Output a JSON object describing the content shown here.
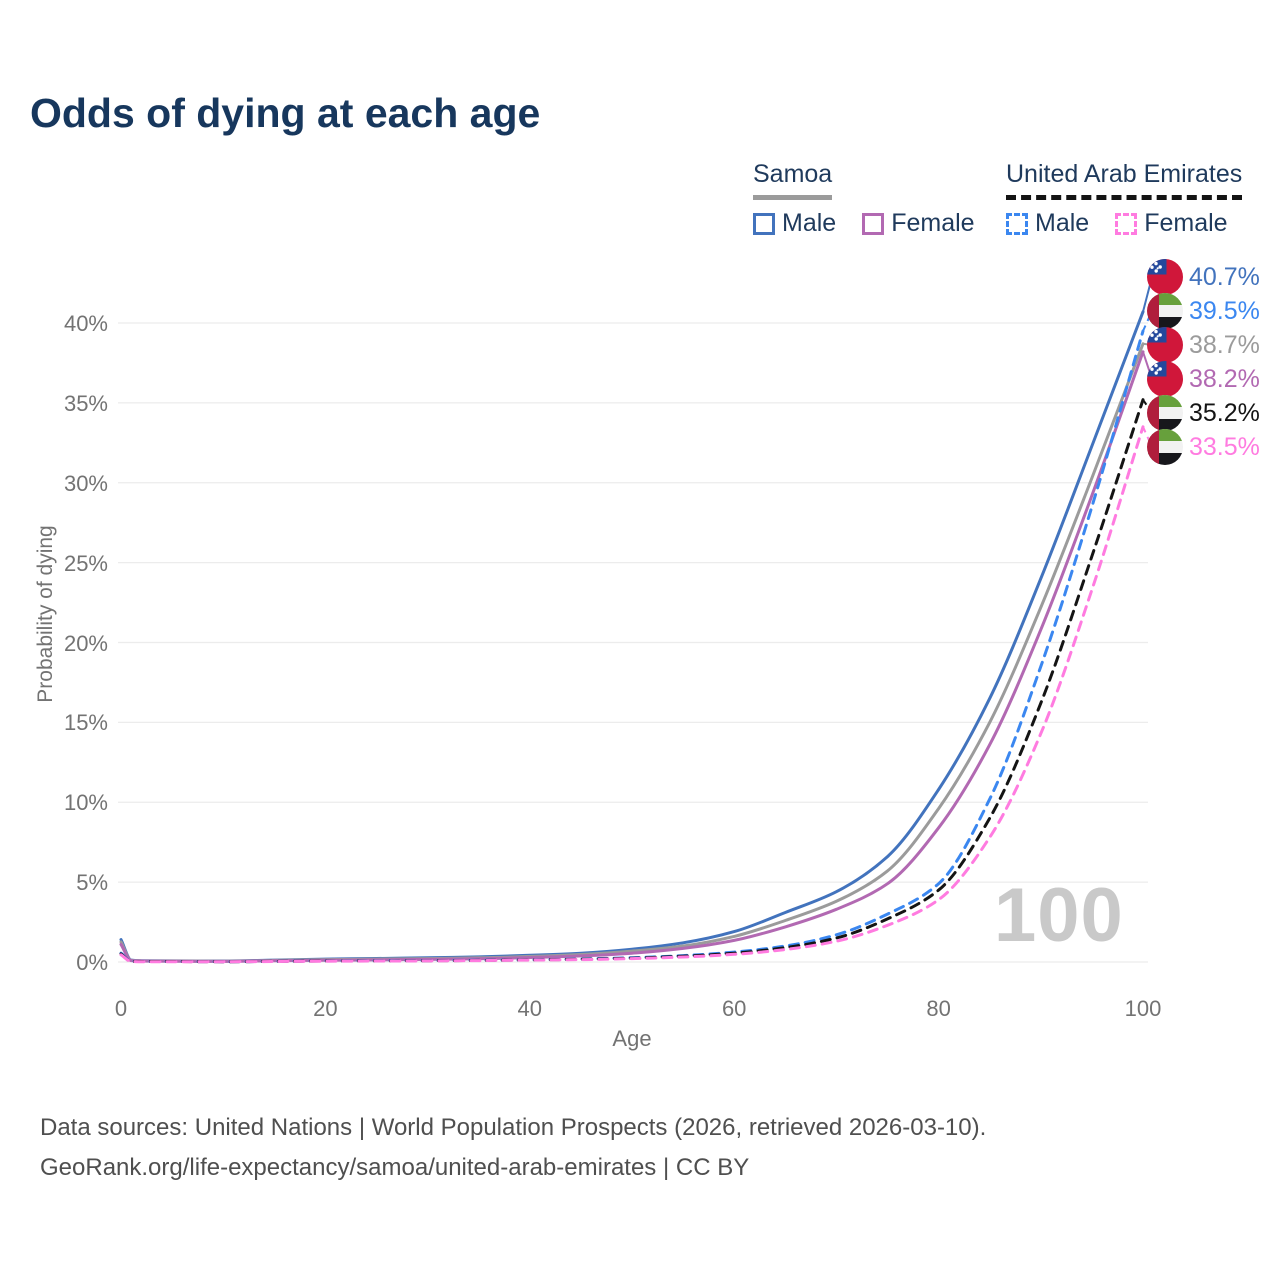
{
  "title": "Odds of dying at each age",
  "legend": {
    "groups": [
      {
        "country": "Samoa",
        "line_style": "solid",
        "underline_color": "#9b9b9b",
        "items": [
          {
            "label": "Male",
            "color": "#4273bd",
            "dashed": false
          },
          {
            "label": "Female",
            "color": "#b269b2",
            "dashed": false
          }
        ]
      },
      {
        "country": "United Arab Emirates",
        "line_style": "dashed",
        "underline_color": "#141414",
        "items": [
          {
            "label": "Male",
            "color": "#3b87f0",
            "dashed": true
          },
          {
            "label": "Female",
            "color": "#ff7be0",
            "dashed": true
          }
        ]
      }
    ]
  },
  "watermark": "100",
  "footer": {
    "line1": "Data sources: United Nations | World Population Prospects (2026, retrieved 2026-03-10).",
    "line2": "GeoRank.org/life-expectancy/samoa/united-arab-emirates | CC BY"
  },
  "chart_data": {
    "type": "line",
    "title": "Odds of dying at each age",
    "xlabel": "Age",
    "ylabel": "Probability of dying",
    "x_ticks": [
      0,
      20,
      40,
      60,
      80,
      100
    ],
    "y_ticks": [
      "0%",
      "5%",
      "10%",
      "15%",
      "20%",
      "25%",
      "30%",
      "35%",
      "40%"
    ],
    "y_tick_values": [
      0,
      5,
      10,
      15,
      20,
      25,
      30,
      35,
      40
    ],
    "xlim": [
      0,
      100
    ],
    "ylim_percent": [
      0,
      43
    ],
    "grid": "horizontal",
    "legend_position": "top-right",
    "ages": [
      0,
      1,
      2,
      5,
      10,
      15,
      20,
      25,
      30,
      35,
      40,
      45,
      50,
      55,
      60,
      65,
      70,
      75,
      80,
      85,
      90,
      95,
      100
    ],
    "series": [
      {
        "name": "Samoa Male",
        "flag": "samoa",
        "color": "#4273bd",
        "dash": false,
        "end_label": "40.7%",
        "values": [
          1.4,
          0.12,
          0.08,
          0.07,
          0.06,
          0.12,
          0.18,
          0.22,
          0.26,
          0.32,
          0.42,
          0.55,
          0.8,
          1.2,
          1.9,
          3.1,
          4.4,
          6.6,
          10.8,
          16.5,
          24.0,
          32.3,
          40.7
        ]
      },
      {
        "name": "United Arab Emirates Male",
        "flag": "uae",
        "color": "#3b87f0",
        "dash": true,
        "end_label": "39.5%",
        "values": [
          0.55,
          0.05,
          0.03,
          0.03,
          0.02,
          0.04,
          0.07,
          0.08,
          0.09,
          0.11,
          0.14,
          0.19,
          0.27,
          0.4,
          0.62,
          1.0,
          1.7,
          3.0,
          4.9,
          10.2,
          18.5,
          28.5,
          39.5
        ]
      },
      {
        "name": "Samoa Both sexes",
        "flag": "samoa",
        "color": "#9b9b9b",
        "dash": false,
        "end_label": "38.7%",
        "values": [
          1.25,
          0.1,
          0.07,
          0.06,
          0.05,
          0.1,
          0.15,
          0.18,
          0.21,
          0.26,
          0.35,
          0.47,
          0.68,
          1.0,
          1.6,
          2.6,
          3.8,
          5.7,
          9.6,
          15.0,
          22.2,
          30.3,
          38.7
        ]
      },
      {
        "name": "Samoa Female",
        "flag": "samoa",
        "color": "#b269b2",
        "dash": false,
        "end_label": "38.2%",
        "values": [
          1.1,
          0.09,
          0.06,
          0.05,
          0.04,
          0.08,
          0.11,
          0.13,
          0.16,
          0.2,
          0.28,
          0.38,
          0.55,
          0.85,
          1.35,
          2.2,
          3.3,
          4.9,
          8.4,
          13.6,
          20.8,
          29.2,
          38.2
        ]
      },
      {
        "name": "United Arab Emirates Both sexes",
        "flag": "uae",
        "color": "#141414",
        "dash": true,
        "end_label": "35.2%",
        "values": [
          0.5,
          0.04,
          0.03,
          0.03,
          0.02,
          0.04,
          0.06,
          0.07,
          0.08,
          0.1,
          0.13,
          0.17,
          0.24,
          0.36,
          0.55,
          0.9,
          1.5,
          2.7,
          4.5,
          9.0,
          16.2,
          25.4,
          35.2
        ]
      },
      {
        "name": "United Arab Emirates Female",
        "flag": "uae",
        "color": "#ff7be0",
        "dash": true,
        "end_label": "33.5%",
        "values": [
          0.45,
          0.04,
          0.02,
          0.02,
          0.02,
          0.03,
          0.05,
          0.06,
          0.07,
          0.09,
          0.12,
          0.15,
          0.21,
          0.31,
          0.48,
          0.78,
          1.3,
          2.3,
          3.9,
          7.8,
          14.3,
          23.3,
          33.5
        ]
      }
    ],
    "flag_colors": {
      "samoa_red": "#d0173a",
      "samoa_blue": "#24489c",
      "star_white": "#ffffff",
      "uae_red": "#b01e3c",
      "uae_green": "#67a03c",
      "uae_white": "#f2f2f2",
      "uae_black": "#17171c"
    }
  }
}
